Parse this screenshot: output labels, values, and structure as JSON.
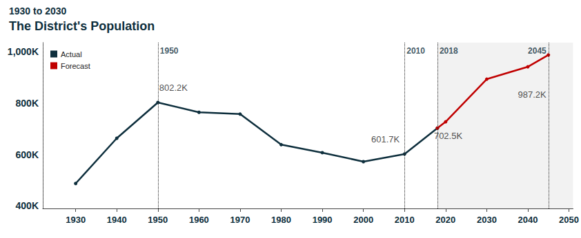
{
  "chart_data": {
    "type": "line",
    "subtitle": "1930 to 2030",
    "title": "The District's Population",
    "series": [
      {
        "name": "Actual",
        "color": "#0e2f3d",
        "x": [
          1930,
          1940,
          1950,
          1960,
          1970,
          1980,
          1990,
          2000,
          2010,
          2018
        ],
        "values": [
          487,
          663,
          802.2,
          764,
          757,
          638,
          607,
          572,
          601.7,
          702.5
        ]
      },
      {
        "name": "Forecast",
        "color": "#c00000",
        "x": [
          2018,
          2020,
          2030,
          2040,
          2045
        ],
        "values": [
          702.5,
          727,
          893,
          941,
          987.2
        ]
      }
    ],
    "xlim": [
      1922,
      2051
    ],
    "xticks": [
      1930,
      1940,
      1950,
      1960,
      1970,
      1980,
      1990,
      2000,
      2010,
      2020,
      2030,
      2040,
      2050
    ],
    "ylim": [
      390,
      1035
    ],
    "yticks": [
      {
        "value": 400,
        "label": "400K"
      },
      {
        "value": 600,
        "label": "600K"
      },
      {
        "value": 800,
        "label": "800K"
      },
      {
        "value": 1000,
        "label": "1,000K"
      }
    ],
    "grid": false,
    "legend": "upper left",
    "marker": "circle",
    "annotations": [
      {
        "text": "802.2K",
        "x": 1950,
        "y": 802.2
      },
      {
        "text": "601.7K",
        "x": 2010,
        "y": 601.7
      },
      {
        "text": "702.5K",
        "x": 2018,
        "y": 702.5
      },
      {
        "text": "987.2K",
        "x": 2045,
        "y": 987.2
      }
    ],
    "reference_lines": [
      {
        "x": 1950,
        "label": "1950"
      },
      {
        "x": 2010,
        "label": "2010"
      },
      {
        "x": 2018,
        "label": "2018"
      },
      {
        "x": 2045,
        "label": "2045"
      }
    ],
    "shaded_region": {
      "from": 2018,
      "to": 2051
    }
  }
}
